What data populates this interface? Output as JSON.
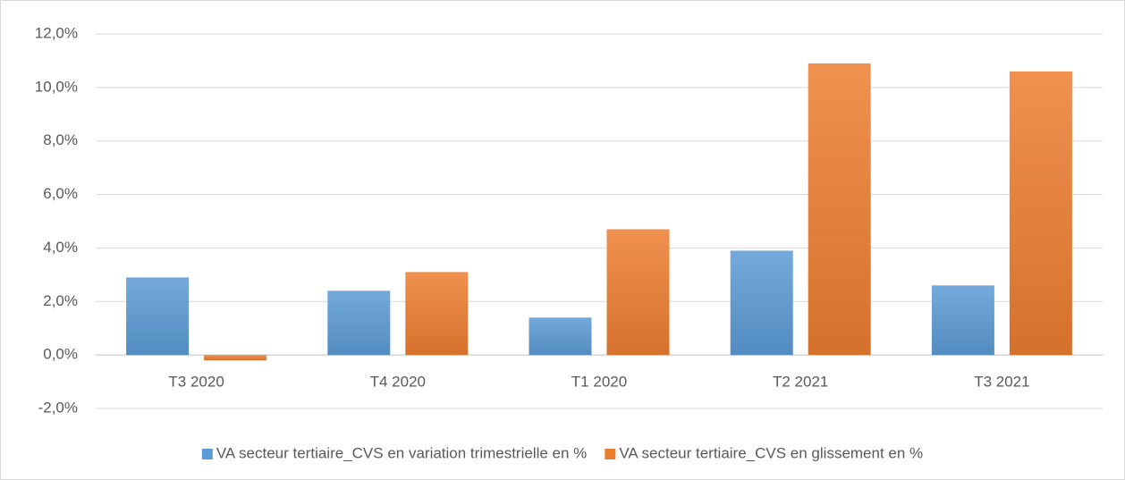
{
  "chart_data": {
    "type": "bar",
    "categories": [
      "T3 2020",
      "T4 2020",
      "T1 2020",
      "T2 2021",
      "T3 2021"
    ],
    "series": [
      {
        "name": "VA secteur tertiaire_CVS en variation trimestrielle en %",
        "color": "#5b9bd5",
        "values": [
          2.9,
          2.4,
          1.4,
          3.9,
          2.6
        ]
      },
      {
        "name": "VA secteur tertiaire_CVS en glissement en %",
        "color": "#ed7d31",
        "values": [
          -0.2,
          3.1,
          4.7,
          10.9,
          10.6
        ]
      }
    ],
    "ylim": [
      -2,
      12
    ],
    "yticks": [
      {
        "value": -2,
        "label": "-2,0%"
      },
      {
        "value": 0,
        "label": "0,0%"
      },
      {
        "value": 2,
        "label": "2,0%"
      },
      {
        "value": 4,
        "label": "4,0%"
      },
      {
        "value": 6,
        "label": "6,0%"
      },
      {
        "value": 8,
        "label": "8,0%"
      },
      {
        "value": 10,
        "label": "10,0%"
      },
      {
        "value": 12,
        "label": "12,0%"
      }
    ],
    "grid": true,
    "legend": "bottom"
  }
}
